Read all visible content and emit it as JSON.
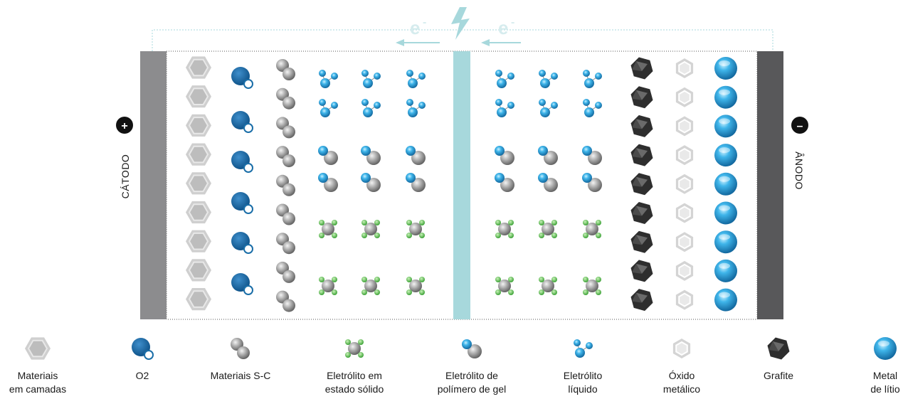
{
  "electron_flow": {
    "left_label": "e",
    "right_label": "e",
    "superscript": "-",
    "source_icon": "lightning-bolt-icon"
  },
  "cathode": {
    "label": "CÁTODO",
    "sign": "+"
  },
  "anode": {
    "label": "ÂNODO",
    "sign": "–"
  },
  "colors": {
    "cathode_plate": "#8c8c8e",
    "anode_plate": "#58585a",
    "separator": "#a7d8dc",
    "electron_arrow": "#d6ecee",
    "layered_material": "#cfcfcf",
    "o2": "#1a6ea8",
    "s_c": "#8a8a8a",
    "lithium_blue": "#2a9fd6",
    "solid_green": "#5cc24a",
    "graphite": "#3a3a3a",
    "metal_oxide": "#d4d4d4"
  },
  "legend": [
    {
      "icon": "layered-material-icon",
      "lines": [
        "Materiais",
        "em camadas"
      ]
    },
    {
      "icon": "o2-icon",
      "lines": [
        "O2"
      ]
    },
    {
      "icon": "sulfur-carbon-icon",
      "lines": [
        "Materiais S-C"
      ]
    },
    {
      "icon": "solid-electrolyte-icon",
      "lines": [
        "Eletrólito em",
        "estado sólido"
      ]
    },
    {
      "icon": "gel-polymer-icon",
      "lines": [
        "Eletrólito de",
        "polímero de gel"
      ]
    },
    {
      "icon": "liquid-electrolyte-icon",
      "lines": [
        "Eletrólito",
        "líquido"
      ]
    },
    {
      "icon": "metal-oxide-icon",
      "lines": [
        "Óxido",
        "metálico"
      ]
    },
    {
      "icon": "graphite-icon",
      "lines": [
        "Grafite"
      ]
    },
    {
      "icon": "lithium-metal-icon",
      "lines": [
        "Metal",
        "de lítio"
      ]
    }
  ]
}
